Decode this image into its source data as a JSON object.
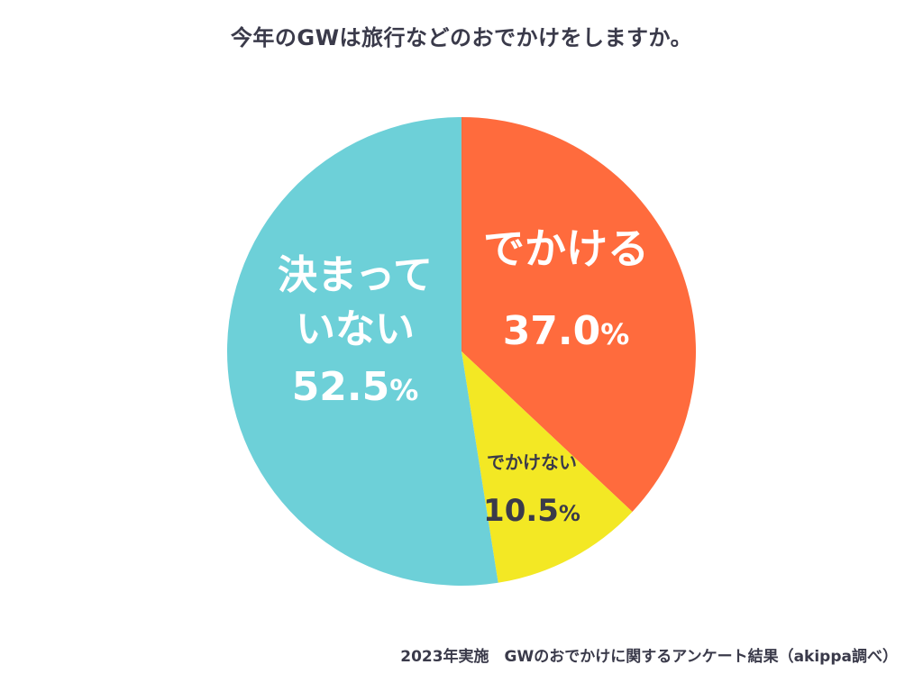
{
  "title": "今年のGWは旅行などのおでかけをしますか。",
  "footer": "2023年実施　GWのおでかけに関するアンケート結果（akippa調べ）",
  "chart_data": {
    "type": "pie",
    "title": "今年のGWは旅行などのおでかけをしますか。",
    "slices": [
      {
        "label": "でかける",
        "value": 37.0,
        "display": "37.0",
        "unit": "%",
        "color": "#ff6b3d"
      },
      {
        "label": "でかけない",
        "value": 10.5,
        "display": "10.5",
        "unit": "%",
        "color": "#f3e824"
      },
      {
        "label": "決まって\nいない",
        "value": 52.5,
        "display": "52.5",
        "unit": "%",
        "color": "#6dd0d8"
      }
    ],
    "start_angle": "12 o'clock",
    "direction": "clockwise"
  }
}
